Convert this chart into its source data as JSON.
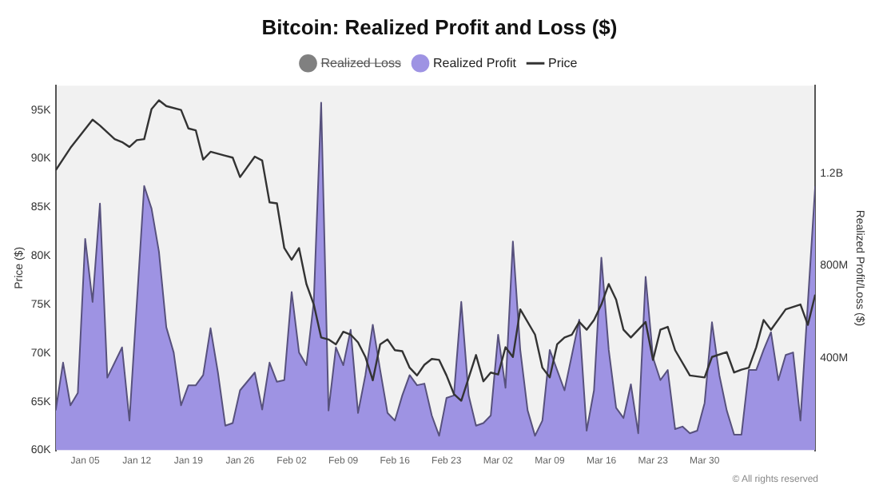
{
  "chart_data": {
    "type": "area",
    "title": "Bitcoin: Realized Profit and Loss ($)",
    "ylabel": "Price ($)",
    "y2label": "Realized Profit/Loss ($)",
    "annotations": [
      "© All rights reserved"
    ],
    "xlim": [
      "--01-01",
      "--04-14"
    ],
    "xticks": [
      {
        "value": "--01-05",
        "label": "Jan 05"
      },
      {
        "value": "--01-12",
        "label": "Jan 12"
      },
      {
        "value": "--01-19",
        "label": "Jan 19"
      },
      {
        "value": "--01-26",
        "label": "Jan 26"
      },
      {
        "value": "--02-02",
        "label": "Feb 02"
      },
      {
        "value": "--02-09",
        "label": "Feb 09"
      },
      {
        "value": "--02-16",
        "label": "Feb 16"
      },
      {
        "value": "--02-23",
        "label": "Feb 23"
      },
      {
        "value": "--03-02",
        "label": "Mar 02"
      },
      {
        "value": "--03-09",
        "label": "Mar 09"
      },
      {
        "value": "--03-16",
        "label": "Mar 16"
      },
      {
        "value": "--03-23",
        "label": "Mar 23"
      },
      {
        "value": "--03-30",
        "label": "Mar 30"
      }
    ],
    "ylim": [
      60000,
      97500
    ],
    "yticks": [
      {
        "value": 60000,
        "label": "60K"
      },
      {
        "value": 65000,
        "label": "65K"
      },
      {
        "value": 70000,
        "label": "70K"
      },
      {
        "value": 75000,
        "label": "75K"
      },
      {
        "value": 80000,
        "label": "80K"
      },
      {
        "value": 85000,
        "label": "85K"
      },
      {
        "value": 90000,
        "label": "90K"
      },
      {
        "value": 95000,
        "label": "95K"
      }
    ],
    "y2lim": [
      0,
      1580000000
    ],
    "y2ticks": [
      {
        "value": 400000000,
        "label": "400M"
      },
      {
        "value": 800000000,
        "label": "800M"
      },
      {
        "value": 1200000000,
        "label": "1.2B"
      }
    ],
    "grid": false,
    "legend": "top",
    "marker": "none",
    "line_style": "solid",
    "series": [
      {
        "name": "Realized Loss",
        "type": "area",
        "axis": "y2",
        "color": "#808080"
      },
      {
        "name": "Realized Profit",
        "axis": "y2",
        "color": "#9e93e3",
        "x": [
          "--01-01",
          "--01-02",
          "--01-03",
          "--01-04",
          "--01-05",
          "--01-06",
          "--01-07",
          "--01-08",
          "--01-10",
          "--01-11",
          "--01-13",
          "--01-14",
          "--01-15",
          "--01-16",
          "--01-17",
          "--01-18",
          "--01-19",
          "--01-20",
          "--01-21",
          "--01-22",
          "--01-23",
          "--01-24",
          "--01-25",
          "--01-26",
          "--01-28",
          "--01-29",
          "--01-30",
          "--01-31",
          "--02-01",
          "--02-02",
          "--02-03",
          "--02-04",
          "--02-05",
          "--02-06",
          "--02-07",
          "--02-08",
          "--02-09",
          "--02-10",
          "--02-11",
          "--02-12",
          "--02-13",
          "--02-14",
          "--02-15",
          "--02-16",
          "--02-17",
          "--02-18",
          "--02-19",
          "--02-20",
          "--02-21",
          "--02-22",
          "--02-23",
          "--02-24",
          "--02-25",
          "--02-26",
          "--02-27",
          "--02-28",
          "--03-01",
          "--03-02",
          "--03-03",
          "--03-04",
          "--03-05",
          "--03-06",
          "--03-07",
          "--03-08",
          "--03-09",
          "--03-11",
          "--03-13",
          "--03-14",
          "--03-15",
          "--03-16",
          "--03-17",
          "--03-18",
          "--03-19",
          "--03-20",
          "--03-21",
          "--03-22",
          "--03-23",
          "--03-24",
          "--03-25",
          "--03-26",
          "--03-27",
          "--03-28",
          "--03-29",
          "--03-30",
          "--03-31",
          "--04-01",
          "--04-02",
          "--04-03",
          "--04-04",
          "--04-05",
          "--04-06",
          "--04-07",
          "--04-08",
          "--04-09",
          "--04-10",
          "--04-11",
          "--04-12",
          "--04-14"
        ],
        "values": [
          173000000,
          380000000,
          195000000,
          249000000,
          916000000,
          643000000,
          1069000000,
          315000000,
          446000000,
          129000000,
          1145000000,
          1047000000,
          861000000,
          533000000,
          424000000,
          195000000,
          282000000,
          282000000,
          326000000,
          529000000,
          337000000,
          107000000,
          118000000,
          260000000,
          337000000,
          177000000,
          380000000,
          297000000,
          304000000,
          686000000,
          424000000,
          369000000,
          643000000,
          1506000000,
          173000000,
          446000000,
          369000000,
          522000000,
          162000000,
          326000000,
          544000000,
          348000000,
          162000000,
          129000000,
          238000000,
          326000000,
          282000000,
          289000000,
          151000000,
          63000000,
          227000000,
          238000000,
          643000000,
          238000000,
          107000000,
          118000000,
          151000000,
          501000000,
          271000000,
          905000000,
          435000000,
          173000000,
          63000000,
          129000000,
          435000000,
          260000000,
          566000000,
          85000000,
          260000000,
          835000000,
          435000000,
          184000000,
          140000000,
          286000000,
          74000000,
          752000000,
          402000000,
          304000000,
          348000000,
          92000000,
          103000000,
          74000000,
          85000000,
          205000000,
          555000000,
          326000000,
          173000000,
          68000000,
          68000000,
          348000000,
          348000000,
          435000000,
          512000000,
          304000000,
          413000000,
          424000000,
          129000000,
          1145000000
        ]
      },
      {
        "name": "Price",
        "type": "line",
        "axis": "y",
        "color": "#333333",
        "x": [
          "--01-01",
          "--01-03",
          "--01-06",
          "--01-07",
          "--01-09",
          "--01-10",
          "--01-11",
          "--01-12",
          "--01-13",
          "--01-14",
          "--01-15",
          "--01-16",
          "--01-18",
          "--01-19",
          "--01-20",
          "--01-21",
          "--01-22",
          "--01-24",
          "--01-25",
          "--01-26",
          "--01-28",
          "--01-29",
          "--01-30",
          "--01-31",
          "--02-01",
          "--02-02",
          "--02-03",
          "--02-04",
          "--02-05",
          "--02-06",
          "--02-07",
          "--02-08",
          "--02-09",
          "--02-10",
          "--02-11",
          "--02-12",
          "--02-13",
          "--02-14",
          "--02-15",
          "--02-16",
          "--02-17",
          "--02-18",
          "--02-19",
          "--02-20",
          "--02-21",
          "--02-22",
          "--02-23",
          "--02-24",
          "--02-25",
          "--02-27",
          "--02-28",
          "--03-01",
          "--03-02",
          "--03-03",
          "--03-04",
          "--03-05",
          "--03-07",
          "--03-08",
          "--03-09",
          "--03-10",
          "--03-11",
          "--03-12",
          "--03-13",
          "--03-14",
          "--03-15",
          "--03-16",
          "--03-17",
          "--03-18",
          "--03-19",
          "--03-20",
          "--03-22",
          "--03-23",
          "--03-24",
          "--03-25",
          "--03-26",
          "--03-28",
          "--03-29",
          "--03-30",
          "--03-31",
          "--04-02",
          "--04-03",
          "--04-04",
          "--04-05",
          "--04-06",
          "--04-07",
          "--04-08",
          "--04-10",
          "--04-12",
          "--04-13",
          "--04-14"
        ],
        "values": [
          88800,
          91100,
          94000,
          93400,
          92000,
          91700,
          91200,
          91900,
          92000,
          95100,
          96000,
          95400,
          95000,
          93100,
          92900,
          89900,
          90700,
          90300,
          90100,
          88100,
          90200,
          89800,
          85500,
          85400,
          80800,
          79600,
          80800,
          77100,
          75000,
          71600,
          71400,
          70900,
          72200,
          71900,
          71100,
          69600,
          67200,
          70900,
          71400,
          70300,
          70200,
          68500,
          67700,
          68800,
          69400,
          69300,
          67700,
          65800,
          65100,
          69800,
          67100,
          68000,
          67800,
          70600,
          69600,
          74500,
          71900,
          68500,
          67500,
          70900,
          71600,
          71900,
          73200,
          72400,
          73400,
          75000,
          77100,
          75500,
          72400,
          71600,
          73200,
          69300,
          72400,
          72700,
          70300,
          67700,
          67600,
          67500,
          69600,
          70100,
          68000,
          68300,
          68500,
          70600,
          73400,
          72400,
          74500,
          75000,
          72900,
          76000
        ]
      }
    ]
  }
}
